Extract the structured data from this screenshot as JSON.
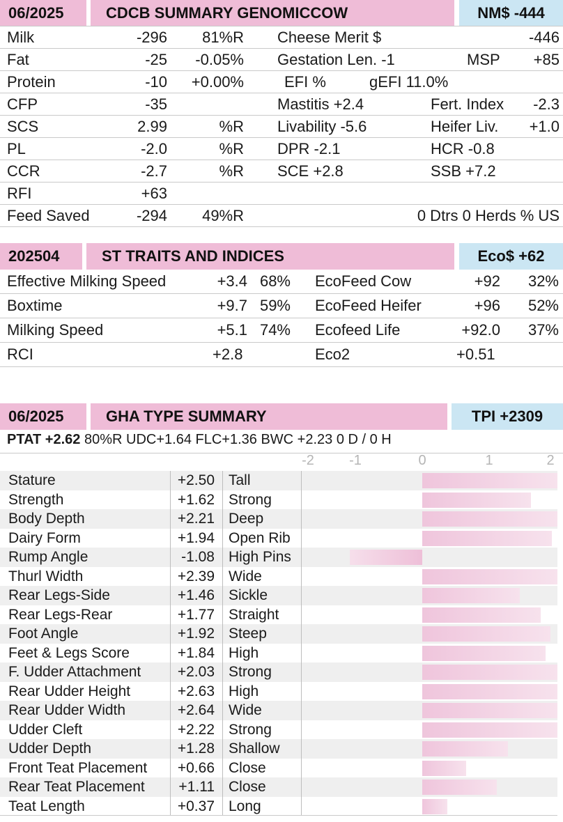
{
  "cdcb": {
    "date": "06/2025",
    "title": "CDCB SUMMARY GENOMICCOW",
    "index": "NM$ -444",
    "rows": [
      [
        "Milk",
        "-296",
        "81%R",
        "Cheese Merit $",
        "",
        "-446",
        ""
      ],
      [
        "Fat",
        "-25",
        "-0.05%",
        "Gestation Len. -1",
        "",
        "MSP",
        "+85"
      ],
      [
        "Protein",
        "-10",
        "+0.00%",
        "EFI  %",
        "gEFI  11.0%",
        "",
        ""
      ],
      [
        "CFP",
        "-35",
        "",
        "Mastitis   +2.4",
        "",
        "Fert. Index",
        "-2.3"
      ],
      [
        "SCS",
        "2.99",
        "%R",
        "Livability   -5.6",
        "",
        "Heifer Liv.",
        "+1.0"
      ],
      [
        "PL",
        "-2.0",
        "%R",
        "DPR   -2.1",
        "",
        "HCR  -0.8",
        ""
      ],
      [
        "CCR",
        "-2.7",
        "%R",
        "SCE   +2.8",
        "",
        "SSB  +7.2",
        ""
      ],
      [
        "RFI",
        "+63",
        "",
        "",
        "",
        "",
        ""
      ],
      [
        "Feed Saved",
        "-294",
        "49%R",
        "0 Dtrs  0 Herds  % US",
        "",
        "",
        ""
      ]
    ]
  },
  "st": {
    "date": "202504",
    "title": "ST TRAITS AND INDICES",
    "index": "Eco$ +62",
    "rows": [
      [
        "Effective Milking Speed",
        "+3.4",
        "68%",
        "EcoFeed Cow",
        "+92",
        "32%"
      ],
      [
        "Boxtime",
        "+9.7",
        "59%",
        "EcoFeed Heifer",
        "+96",
        "52%"
      ],
      [
        "Milking Speed",
        "+5.1",
        "74%",
        "Ecofeed Life",
        "+92.0",
        "37%"
      ],
      [
        "RCI",
        "+2.8",
        "",
        "Eco2",
        "+0.51",
        ""
      ]
    ]
  },
  "gha": {
    "date": "06/2025",
    "title": "GHA TYPE SUMMARY",
    "index": "TPI +2309",
    "ptat_label": "PTAT +2.62",
    "ptat_rest": "80%R  UDC+1.64  FLC+1.36  BWC +2.23  0 D /  0 H",
    "axis_ticks": [
      "-2",
      "-1",
      "0",
      "1",
      "2"
    ],
    "traits": [
      {
        "name": "Stature",
        "value": 2.5,
        "display": "+2.50",
        "desc": "Tall"
      },
      {
        "name": "Strength",
        "value": 1.62,
        "display": "+1.62",
        "desc": "Strong"
      },
      {
        "name": "Body Depth",
        "value": 2.21,
        "display": "+2.21",
        "desc": "Deep"
      },
      {
        "name": "Dairy Form",
        "value": 1.94,
        "display": "+1.94",
        "desc": "Open Rib"
      },
      {
        "name": "Rump Angle",
        "value": -1.08,
        "display": "-1.08",
        "desc": "High Pins"
      },
      {
        "name": "Thurl Width",
        "value": 2.39,
        "display": "+2.39",
        "desc": "Wide"
      },
      {
        "name": "Rear Legs-Side",
        "value": 1.46,
        "display": "+1.46",
        "desc": "Sickle"
      },
      {
        "name": "Rear Legs-Rear",
        "value": 1.77,
        "display": "+1.77",
        "desc": "Straight"
      },
      {
        "name": "Foot Angle",
        "value": 1.92,
        "display": "+1.92",
        "desc": "Steep"
      },
      {
        "name": "Feet & Legs Score",
        "value": 1.84,
        "display": "+1.84",
        "desc": "High"
      },
      {
        "name": "F. Udder Attachment",
        "value": 2.03,
        "display": "+2.03",
        "desc": "Strong"
      },
      {
        "name": "Rear Udder Height",
        "value": 2.63,
        "display": "+2.63",
        "desc": "High"
      },
      {
        "name": "Rear Udder Width",
        "value": 2.64,
        "display": "+2.64",
        "desc": "Wide"
      },
      {
        "name": "Udder Cleft",
        "value": 2.22,
        "display": "+2.22",
        "desc": "Strong"
      },
      {
        "name": "Udder Depth",
        "value": 1.28,
        "display": "+1.28",
        "desc": "Shallow"
      },
      {
        "name": "Front Teat Placement",
        "value": 0.66,
        "display": "+0.66",
        "desc": "Close"
      },
      {
        "name": "Rear Teat Placement",
        "value": 1.11,
        "display": "+1.11",
        "desc": "Close"
      },
      {
        "name": "Teat Length",
        "value": 0.37,
        "display": "+0.37",
        "desc": "Long"
      }
    ]
  }
}
